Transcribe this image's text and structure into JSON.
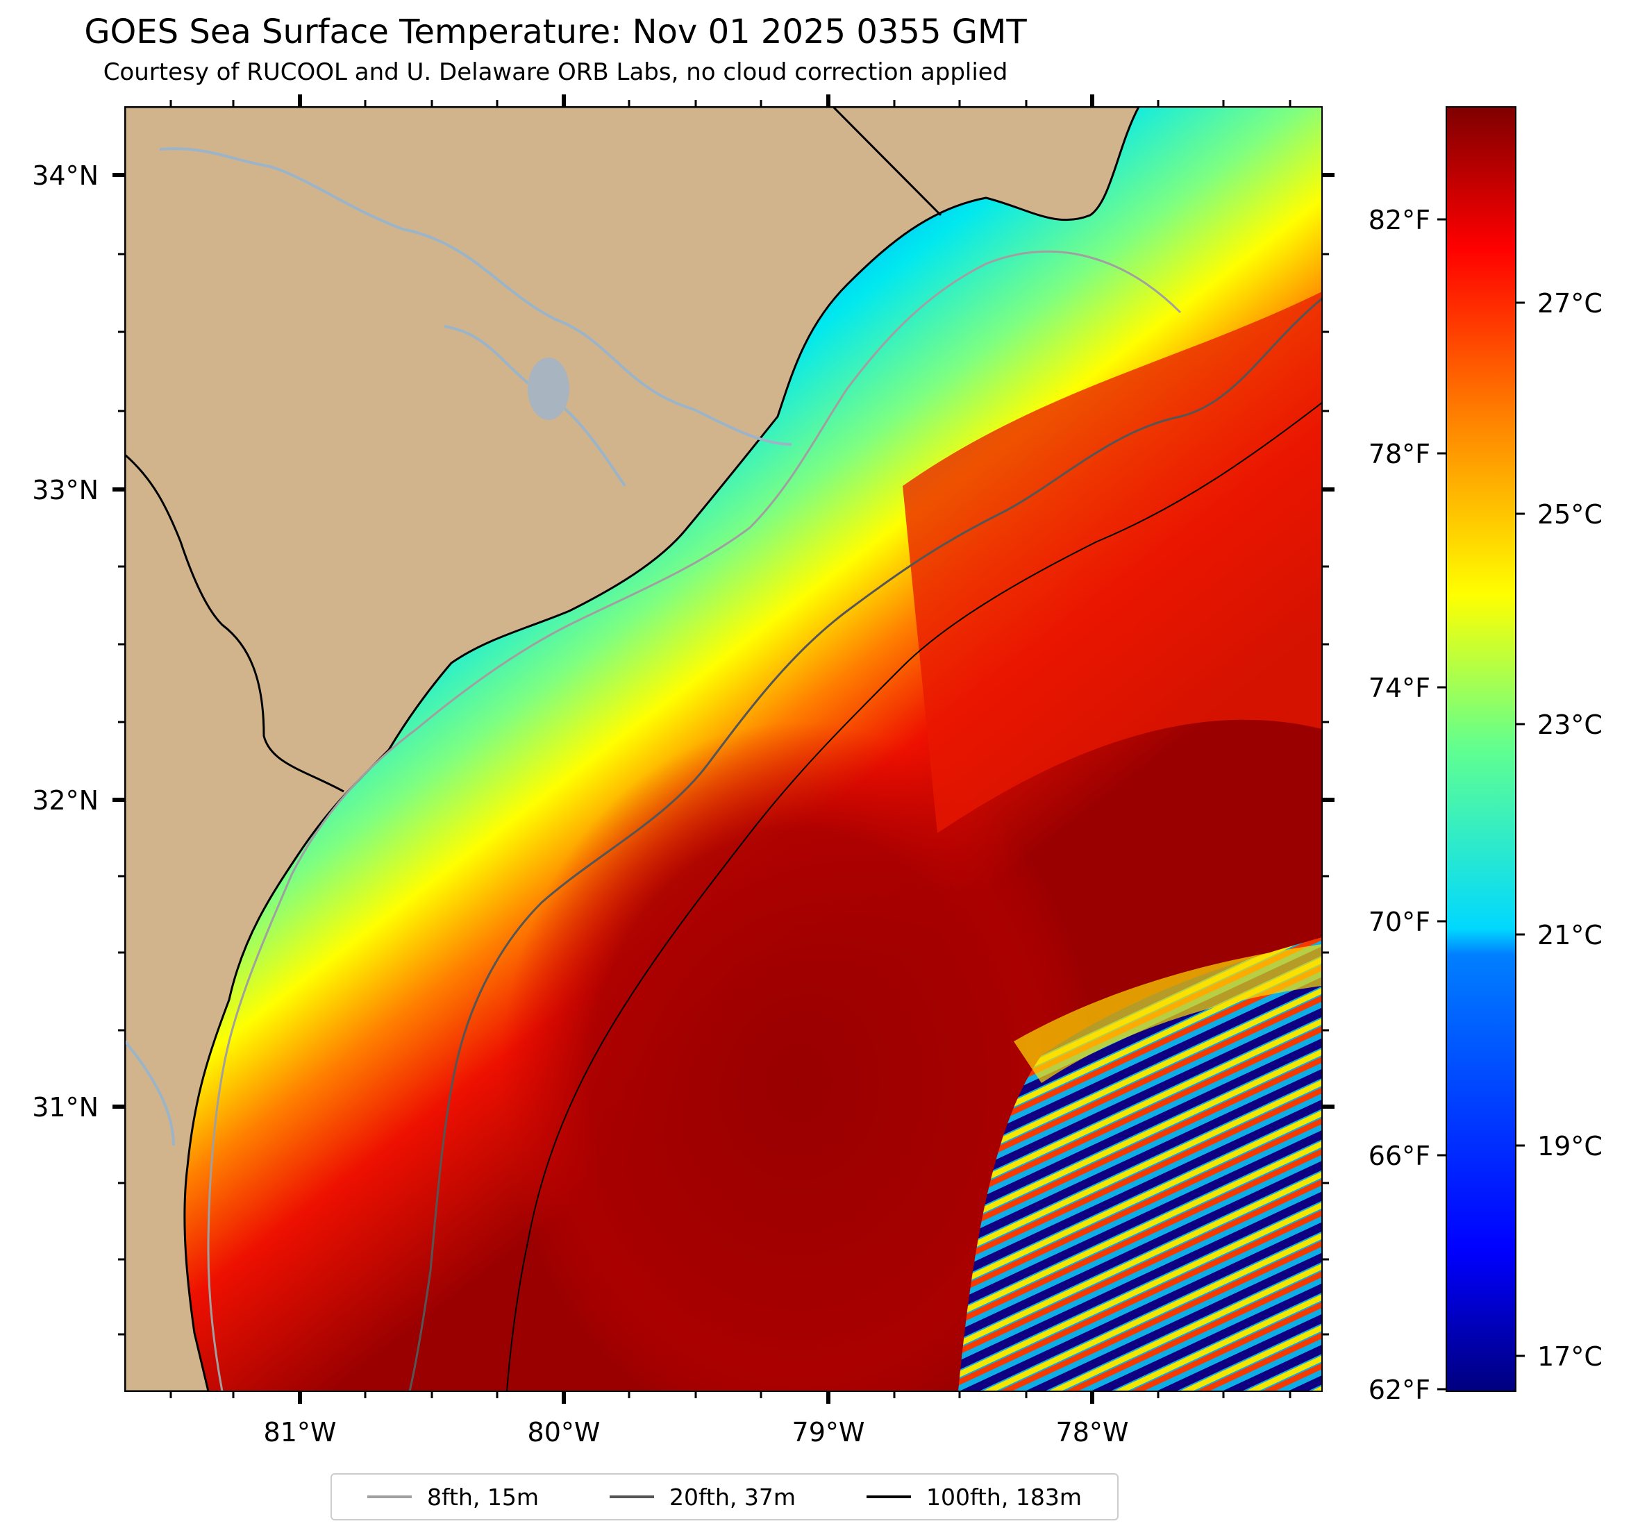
{
  "title": "GOES Sea Surface Temperature: Nov 01 2025 0355 GMT",
  "subtitle": "Courtesy of RUCOOL and U. Delaware ORB Labs, no cloud correction applied",
  "map": {
    "lat_labels": [
      "34°N",
      "33°N",
      "32°N",
      "31°N"
    ],
    "lon_labels": [
      "81°W",
      "80°W",
      "79°W",
      "78°W"
    ],
    "colors": {
      "land": "#d2b48c",
      "river": "#9bb4c8",
      "coast": "#000000"
    }
  },
  "colorbar": {
    "fahrenheit_labels": [
      "82°F",
      "78°F",
      "74°F",
      "70°F",
      "66°F",
      "62°F"
    ],
    "celsius_labels": [
      "27°C",
      "25°C",
      "23°C",
      "21°C",
      "19°C",
      "17°C"
    ],
    "colormap": [
      "#00007f",
      "#0000ff",
      "#007fff",
      "#00ffff",
      "#7fff7f",
      "#ffff00",
      "#ff7f00",
      "#ff0000",
      "#7f0000"
    ]
  },
  "legend": [
    {
      "label": "8fth, 15m",
      "color": "#a0a0a0"
    },
    {
      "label": "20fth, 37m",
      "color": "#555555"
    },
    {
      "label": "100fth, 183m",
      "color": "#000000"
    }
  ]
}
